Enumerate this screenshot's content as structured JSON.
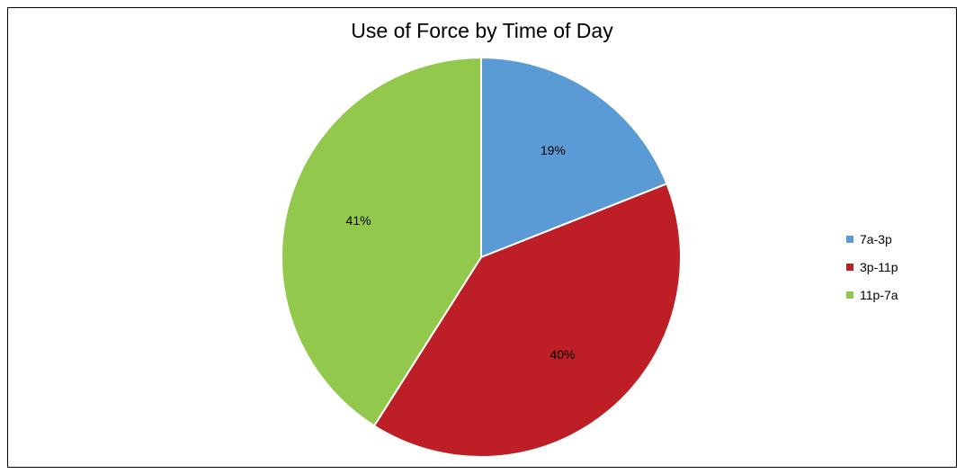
{
  "chart_data": {
    "type": "pie",
    "title": "Use of Force by Time of Day",
    "slices": [
      {
        "label": "7a-3p",
        "value": 19,
        "display": "19%",
        "color": "#5b9bd5"
      },
      {
        "label": "3p-11p",
        "value": 40,
        "display": "40%",
        "color": "#be1e25"
      },
      {
        "label": "11p-7a",
        "value": 41,
        "display": "41%",
        "color": "#92c84c"
      }
    ],
    "legend_position": "right",
    "slice_border_color": "#ffffff"
  }
}
